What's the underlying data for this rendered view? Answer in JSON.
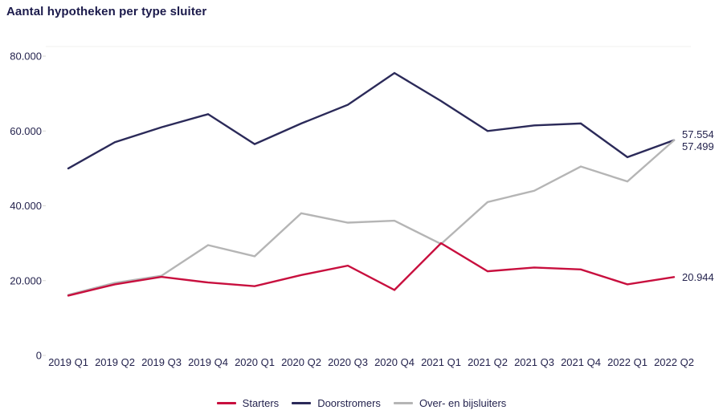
{
  "title": "Aantal hypotheken per type sluiter",
  "colors": {
    "title_text": "#1B1A4B",
    "axis_text": "#24234E",
    "grid": "#F2F2EF",
    "tick": "#D9D9D5",
    "starters": "#C80F3E",
    "doorstromers": "#2B2A59",
    "over_en_bijsluiters": "#B5B5B5"
  },
  "chart_data": {
    "type": "line",
    "title": "Aantal hypotheken per type sluiter",
    "categories": [
      "2019 Q1",
      "2019 Q2",
      "2019 Q3",
      "2019 Q4",
      "2020 Q1",
      "2020 Q2",
      "2020 Q3",
      "2020 Q4",
      "2021 Q1",
      "2021 Q2",
      "2021 Q3",
      "2021 Q4",
      "2022 Q1",
      "2022 Q2"
    ],
    "series": [
      {
        "name": "Doorstromers",
        "color": "#2B2A59",
        "values": [
          50000,
          57000,
          61000,
          64500,
          56500,
          62000,
          67000,
          75500,
          68000,
          60000,
          61500,
          62000,
          53000,
          57554
        ]
      },
      {
        "name": "Over- en bijsluiters",
        "color": "#B5B5B5",
        "values": [
          16200,
          19400,
          21300,
          29500,
          26500,
          38000,
          35500,
          36000,
          29800,
          41000,
          44000,
          50500,
          46500,
          57499
        ]
      },
      {
        "name": "Starters",
        "color": "#C80F3E",
        "values": [
          16000,
          19000,
          21000,
          19500,
          18500,
          21500,
          24000,
          17500,
          30000,
          22500,
          23500,
          23000,
          19000,
          20944
        ]
      }
    ],
    "y_ticks": [
      {
        "value": 0,
        "label": "0"
      },
      {
        "value": 20000,
        "label": "20.000"
      },
      {
        "value": 40000,
        "label": "40.000"
      },
      {
        "value": 60000,
        "label": "60.000"
      },
      {
        "value": 80000,
        "label": "80.000"
      }
    ],
    "ylim": [
      0,
      80000
    ],
    "xlabel": "",
    "ylabel": "",
    "grid": "minimal",
    "legend_position": "bottom-center",
    "end_labels": [
      {
        "series": "Doorstromers",
        "text": "57.554"
      },
      {
        "series": "Over- en bijsluiters",
        "text": "57.499"
      },
      {
        "series": "Starters",
        "text": "20.944"
      }
    ]
  },
  "legend": {
    "items": [
      {
        "label": "Starters",
        "color": "#C80F3E"
      },
      {
        "label": "Doorstromers",
        "color": "#2B2A59"
      },
      {
        "label": "Over- en bijsluiters",
        "color": "#B5B5B5"
      }
    ]
  }
}
